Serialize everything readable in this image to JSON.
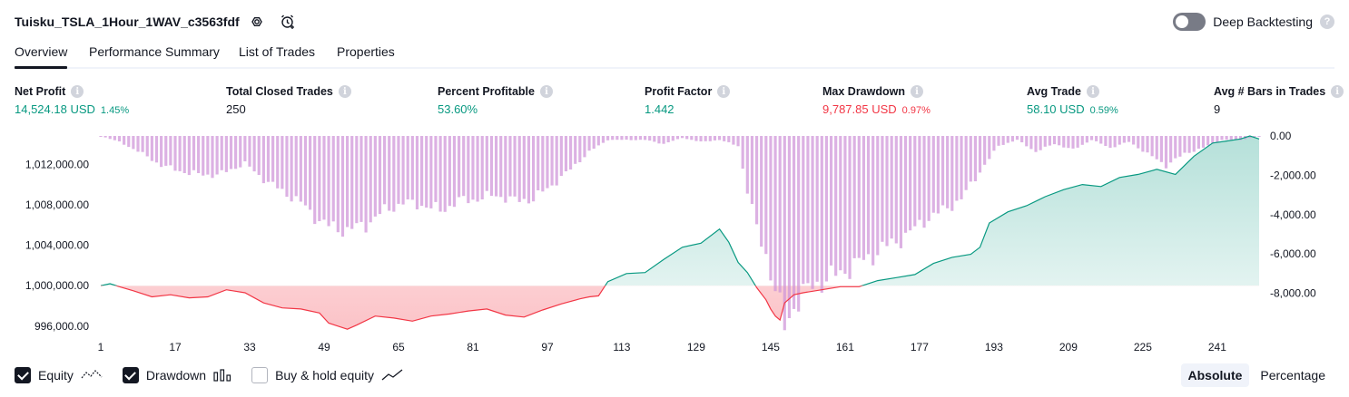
{
  "header": {
    "title": "Tuisku_TSLA_1Hour_1WAV_c3563fdf",
    "deep_backtesting_label": "Deep Backtesting",
    "deep_backtesting_on": false,
    "help_glyph": "?"
  },
  "icons": {
    "settings": "settings-gear-icon",
    "alert": "add-alert-icon",
    "info": "info-icon",
    "help": "help-icon"
  },
  "tabs": [
    {
      "label": "Overview",
      "active": true
    },
    {
      "label": "Performance Summary",
      "active": false
    },
    {
      "label": "List of Trades",
      "active": false
    },
    {
      "label": "Properties",
      "active": false
    }
  ],
  "metrics": {
    "info_glyph": "i",
    "net_profit": {
      "label": "Net Profit",
      "value": "14,524.18 USD",
      "sub": "1.45%",
      "tone": "pos"
    },
    "total_closed_trades": {
      "label": "Total Closed Trades",
      "value": "250",
      "sub": "",
      "tone": "plain"
    },
    "percent_profitable": {
      "label": "Percent Profitable",
      "value": "53.60%",
      "sub": "",
      "tone": "pos"
    },
    "profit_factor": {
      "label": "Profit Factor",
      "value": "1.442",
      "sub": "",
      "tone": "pos"
    },
    "max_drawdown": {
      "label": "Max Drawdown",
      "value": "9,787.85 USD",
      "sub": "0.97%",
      "tone": "neg"
    },
    "avg_trade": {
      "label": "Avg Trade",
      "value": "58.10 USD",
      "sub": "0.59%",
      "tone": "pos"
    },
    "avg_bars": {
      "label": "Avg # Bars in Trades",
      "value": "9",
      "sub": "",
      "tone": "plain"
    }
  },
  "chart_data": {
    "type": "line",
    "x_ticks": [
      "1",
      "17",
      "33",
      "49",
      "65",
      "81",
      "97",
      "113",
      "129",
      "145",
      "161",
      "177",
      "193",
      "209",
      "225",
      "241"
    ],
    "x_range": [
      1,
      250
    ],
    "y_left_ticks": [
      "1,012,000.00",
      "1,008,000.00",
      "1,004,000.00",
      "1,000,000.00",
      "996,000.00"
    ],
    "y_left_range": [
      995000,
      1014800
    ],
    "y_right_ticks": [
      "0.00",
      "-2,000.00",
      "-4,000.00",
      "-6,000.00",
      "-8,000.00"
    ],
    "y_right_range": [
      -10000,
      0
    ],
    "baseline": 1000000,
    "equity_series": {
      "x": [
        1,
        3,
        5,
        8,
        12,
        16,
        20,
        24,
        28,
        32,
        36,
        40,
        44,
        48,
        50,
        52,
        54,
        56,
        60,
        64,
        68,
        72,
        76,
        80,
        84,
        88,
        92,
        96,
        100,
        104,
        106,
        108,
        110,
        114,
        118,
        122,
        126,
        130,
        134,
        136,
        138,
        140,
        142,
        144,
        145,
        146,
        147,
        148,
        150,
        152,
        156,
        160,
        164,
        168,
        172,
        176,
        180,
        184,
        188,
        190,
        192,
        196,
        200,
        204,
        208,
        212,
        216,
        220,
        224,
        228,
        232,
        236,
        240,
        243,
        246,
        248,
        250
      ],
      "y": [
        1000000,
        1000200,
        999900,
        999500,
        998900,
        999100,
        998800,
        998900,
        999600,
        999300,
        998300,
        997800,
        997700,
        997300,
        996300,
        996000,
        995700,
        996100,
        997000,
        996800,
        996500,
        997000,
        997200,
        997500,
        997700,
        997100,
        996900,
        997600,
        998200,
        998700,
        998900,
        999000,
        1000400,
        1001200,
        1001300,
        1002600,
        1003800,
        1004200,
        1005600,
        1004300,
        1002300,
        1001300,
        999800,
        998600,
        997700,
        997000,
        996600,
        998300,
        999100,
        999300,
        999600,
        999900,
        999900,
        1000500,
        1000800,
        1001100,
        1002200,
        1002800,
        1003100,
        1003800,
        1006200,
        1007300,
        1007900,
        1008800,
        1009500,
        1010000,
        1009800,
        1010700,
        1011000,
        1011500,
        1011000,
        1012800,
        1014100,
        1014300,
        1014500,
        1014800,
        1014500
      ]
    },
    "drawdown_series": {
      "x": [
        1,
        5,
        10,
        14,
        20,
        26,
        32,
        36,
        40,
        44,
        48,
        50,
        54,
        58,
        62,
        66,
        70,
        74,
        78,
        82,
        86,
        90,
        94,
        98,
        102,
        106,
        110,
        114,
        118,
        122,
        126,
        130,
        134,
        138,
        140,
        142,
        144,
        146,
        148,
        150,
        154,
        158,
        162,
        166,
        170,
        174,
        178,
        182,
        186,
        190,
        194,
        198,
        202,
        206,
        210,
        214,
        218,
        222,
        226,
        230,
        234,
        238,
        242,
        246,
        248,
        250
      ],
      "y": [
        0,
        -300,
        -900,
        -1500,
        -1900,
        -2000,
        -1400,
        -2200,
        -2800,
        -3400,
        -4300,
        -4600,
        -4800,
        -4500,
        -3800,
        -3400,
        -3500,
        -3800,
        -3300,
        -3200,
        -3000,
        -3300,
        -3200,
        -2500,
        -1700,
        -800,
        -200,
        -200,
        -200,
        -400,
        -100,
        -300,
        -200,
        -500,
        -2800,
        -4700,
        -6000,
        -7900,
        -9700,
        -8600,
        -7600,
        -7200,
        -6700,
        -6200,
        -5600,
        -5100,
        -4300,
        -3800,
        -3200,
        -1800,
        -500,
        -200,
        -800,
        -400,
        -700,
        -200,
        -600,
        -300,
        -900,
        -1500,
        -900,
        -600,
        -200,
        -200,
        -100,
        0
      ]
    }
  },
  "legend": {
    "equity": {
      "label": "Equity",
      "checked": true
    },
    "drawdown": {
      "label": "Drawdown",
      "checked": true
    },
    "buy_hold": {
      "label": "Buy & hold equity",
      "checked": false
    }
  },
  "mode": {
    "absolute": "Absolute",
    "percentage": "Percentage",
    "active": "absolute"
  },
  "colors": {
    "profit": "#089981",
    "loss": "#f23645",
    "drawdown_bar": "#ce93d8",
    "equity_fill_pos": "#089981",
    "equity_fill_neg": "#f23645"
  }
}
